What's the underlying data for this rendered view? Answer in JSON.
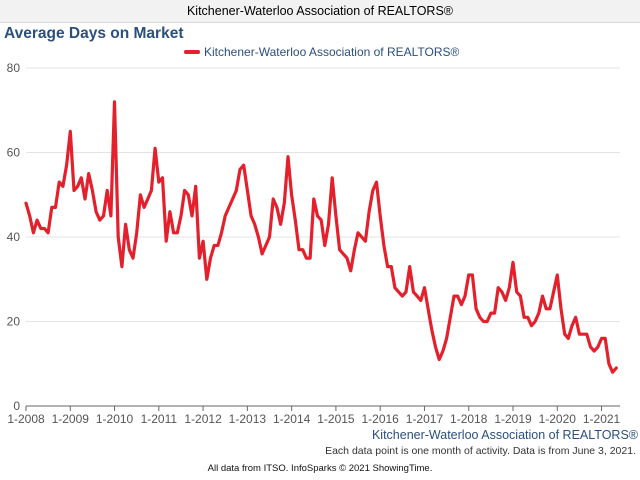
{
  "header": {
    "title": "Kitchener-Waterloo Association of REALTORS®"
  },
  "chart_data": {
    "type": "line",
    "title": "Average Days on Market",
    "xlabel": "",
    "ylabel": "",
    "ylim": [
      0,
      80
    ],
    "xlim": [
      "2008-01",
      "2021-06"
    ],
    "grid": "horizontal",
    "legend": "top",
    "y_ticks": [
      "0",
      "20",
      "40",
      "60",
      "80"
    ],
    "x_ticks": [
      "1-2008",
      "1-2009",
      "1-2010",
      "1-2011",
      "1-2012",
      "1-2013",
      "1-2014",
      "1-2015",
      "1-2016",
      "1-2017",
      "1-2018",
      "1-2019",
      "1-2020",
      "1-2021"
    ],
    "series": [
      {
        "name": "Kitchener-Waterloo Association of REALTORS®",
        "color": "#e3202b",
        "x": [
          "2008-01",
          "2008-02",
          "2008-03",
          "2008-04",
          "2008-05",
          "2008-06",
          "2008-07",
          "2008-08",
          "2008-09",
          "2008-10",
          "2008-11",
          "2008-12",
          "2009-01",
          "2009-02",
          "2009-03",
          "2009-04",
          "2009-05",
          "2009-06",
          "2009-07",
          "2009-08",
          "2009-09",
          "2009-10",
          "2009-11",
          "2009-12",
          "2010-01",
          "2010-02",
          "2010-03",
          "2010-04",
          "2010-05",
          "2010-06",
          "2010-07",
          "2010-08",
          "2010-09",
          "2010-10",
          "2010-11",
          "2010-12",
          "2011-01",
          "2011-02",
          "2011-03",
          "2011-04",
          "2011-05",
          "2011-06",
          "2011-07",
          "2011-08",
          "2011-09",
          "2011-10",
          "2011-11",
          "2011-12",
          "2012-01",
          "2012-02",
          "2012-03",
          "2012-04",
          "2012-05",
          "2012-06",
          "2012-07",
          "2012-08",
          "2012-09",
          "2012-10",
          "2012-11",
          "2012-12",
          "2013-01",
          "2013-02",
          "2013-03",
          "2013-04",
          "2013-05",
          "2013-06",
          "2013-07",
          "2013-08",
          "2013-09",
          "2013-10",
          "2013-11",
          "2013-12",
          "2014-01",
          "2014-02",
          "2014-03",
          "2014-04",
          "2014-05",
          "2014-06",
          "2014-07",
          "2014-08",
          "2014-09",
          "2014-10",
          "2014-11",
          "2014-12",
          "2015-01",
          "2015-02",
          "2015-03",
          "2015-04",
          "2015-05",
          "2015-06",
          "2015-07",
          "2015-08",
          "2015-09",
          "2015-10",
          "2015-11",
          "2015-12",
          "2016-01",
          "2016-02",
          "2016-03",
          "2016-04",
          "2016-05",
          "2016-06",
          "2016-07",
          "2016-08",
          "2016-09",
          "2016-10",
          "2016-11",
          "2016-12",
          "2017-01",
          "2017-02",
          "2017-03",
          "2017-04",
          "2017-05",
          "2017-06",
          "2017-07",
          "2017-08",
          "2017-09",
          "2017-10",
          "2017-11",
          "2017-12",
          "2018-01",
          "2018-02",
          "2018-03",
          "2018-04",
          "2018-05",
          "2018-06",
          "2018-07",
          "2018-08",
          "2018-09",
          "2018-10",
          "2018-11",
          "2018-12",
          "2019-01",
          "2019-02",
          "2019-03",
          "2019-04",
          "2019-05",
          "2019-06",
          "2019-07",
          "2019-08",
          "2019-09",
          "2019-10",
          "2019-11",
          "2019-12",
          "2020-01",
          "2020-02",
          "2020-03",
          "2020-04",
          "2020-05",
          "2020-06",
          "2020-07",
          "2020-08",
          "2020-09",
          "2020-10",
          "2020-11",
          "2020-12",
          "2021-01",
          "2021-02",
          "2021-03",
          "2021-04",
          "2021-05"
        ],
        "values": [
          48,
          45,
          41,
          44,
          42,
          42,
          41,
          47,
          47,
          53,
          52,
          57,
          65,
          51,
          52,
          54,
          49,
          55,
          51,
          46,
          44,
          45,
          51,
          45,
          72,
          40,
          33,
          43,
          37,
          35,
          41,
          50,
          47,
          49,
          51,
          61,
          53,
          54,
          39,
          46,
          41,
          41,
          45,
          51,
          50,
          45,
          52,
          35,
          39,
          30,
          35,
          38,
          38,
          41,
          45,
          47,
          49,
          51,
          56,
          57,
          51,
          45,
          43,
          40,
          36,
          38,
          40,
          49,
          47,
          43,
          48,
          59,
          50,
          44,
          37,
          37,
          35,
          35,
          49,
          45,
          44,
          38,
          43,
          54,
          45,
          37,
          36,
          35,
          32,
          37,
          41,
          40,
          39,
          46,
          51,
          53,
          45,
          38,
          33,
          33,
          28,
          27,
          26,
          27,
          33,
          27,
          26,
          25,
          28,
          23,
          18,
          14,
          11,
          13,
          16,
          21,
          26,
          26,
          24,
          26,
          31,
          31,
          23,
          21,
          20,
          20,
          22,
          22,
          28,
          27,
          25,
          28,
          34,
          27,
          26,
          21,
          21,
          19,
          20,
          22,
          26,
          23,
          23,
          27,
          31,
          23,
          17,
          16,
          19,
          21,
          17,
          17,
          17,
          14,
          13,
          14,
          16,
          16,
          10,
          8,
          9
        ]
      }
    ]
  },
  "source_label": "Kitchener-Waterloo Association of REALTORS®",
  "note": "Each data point is one month of activity. Data is from June 3, 2021.",
  "footer": "All data from ITSO. InfoSparks © 2021 ShowingTime."
}
